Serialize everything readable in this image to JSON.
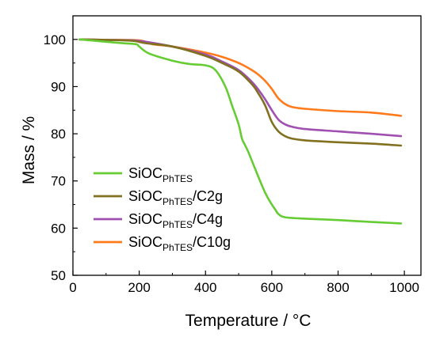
{
  "chart_data": {
    "type": "line",
    "title": "",
    "xlabel": "Temperature / °C",
    "ylabel": "Mass / %",
    "xlim": [
      0,
      1050
    ],
    "ylim": [
      50,
      105
    ],
    "xticks": [
      0,
      200,
      400,
      600,
      800,
      1000
    ],
    "yticks": [
      50,
      60,
      70,
      80,
      90,
      100
    ],
    "grid": false,
    "legend_position": "bottom-left",
    "series": [
      {
        "name": "SiOC_PhTES",
        "label_main": "SiOC",
        "label_sub": "PhTES",
        "label_suffix": "",
        "color": "#66cc33",
        "x": [
          20,
          100,
          150,
          190,
          200,
          230,
          300,
          350,
          400,
          430,
          460,
          480,
          500,
          510,
          520,
          530,
          550,
          580,
          600,
          610,
          620,
          640,
          700,
          800,
          900,
          990
        ],
        "y": [
          100,
          99.5,
          99.2,
          99,
          98.5,
          97,
          95.5,
          94.8,
          94.5,
          93.5,
          90,
          86,
          82,
          79,
          77.5,
          76,
          72.5,
          67.5,
          65,
          64,
          63,
          62.3,
          62,
          61.7,
          61.3,
          61
        ]
      },
      {
        "name": "SiOC_PhTES/C2g",
        "label_main": "SiOC",
        "label_sub": "PhTES",
        "label_suffix": "/C2g",
        "color": "#807020",
        "x": [
          20,
          100,
          180,
          220,
          300,
          400,
          450,
          500,
          540,
          560,
          580,
          600,
          620,
          640,
          660,
          700,
          800,
          900,
          990
        ],
        "y": [
          100,
          99.9,
          99.7,
          99.2,
          98.5,
          96.5,
          95,
          93.2,
          90.5,
          88.5,
          86,
          82.5,
          80.5,
          79.5,
          79,
          78.6,
          78.2,
          77.9,
          77.5
        ]
      },
      {
        "name": "SiOC_PhTES/C4g",
        "label_main": "SiOC",
        "label_sub": "PhTES",
        "label_suffix": "/C4g",
        "color": "#a050b0",
        "x": [
          20,
          100,
          180,
          220,
          300,
          400,
          450,
          500,
          540,
          560,
          580,
          600,
          620,
          640,
          660,
          700,
          800,
          900,
          990
        ],
        "y": [
          100,
          99.9,
          99.8,
          99.5,
          98.5,
          96.8,
          95.3,
          93.5,
          91,
          89.3,
          87.3,
          85,
          83,
          82,
          81.5,
          81,
          80.5,
          80,
          79.5
        ]
      },
      {
        "name": "SiOC_PhTES/C10g",
        "label_main": "SiOC",
        "label_sub": "PhTES",
        "label_suffix": "/C10g",
        "color": "#ff7a1a",
        "x": [
          20,
          100,
          200,
          240,
          300,
          400,
          450,
          500,
          540,
          560,
          580,
          600,
          620,
          640,
          660,
          700,
          800,
          900,
          990
        ],
        "y": [
          100,
          99.9,
          99.8,
          99,
          98.5,
          97.2,
          96.3,
          95,
          93.5,
          92.5,
          91.2,
          89.5,
          87.5,
          86.3,
          85.7,
          85.3,
          84.8,
          84.5,
          83.8
        ]
      }
    ]
  }
}
